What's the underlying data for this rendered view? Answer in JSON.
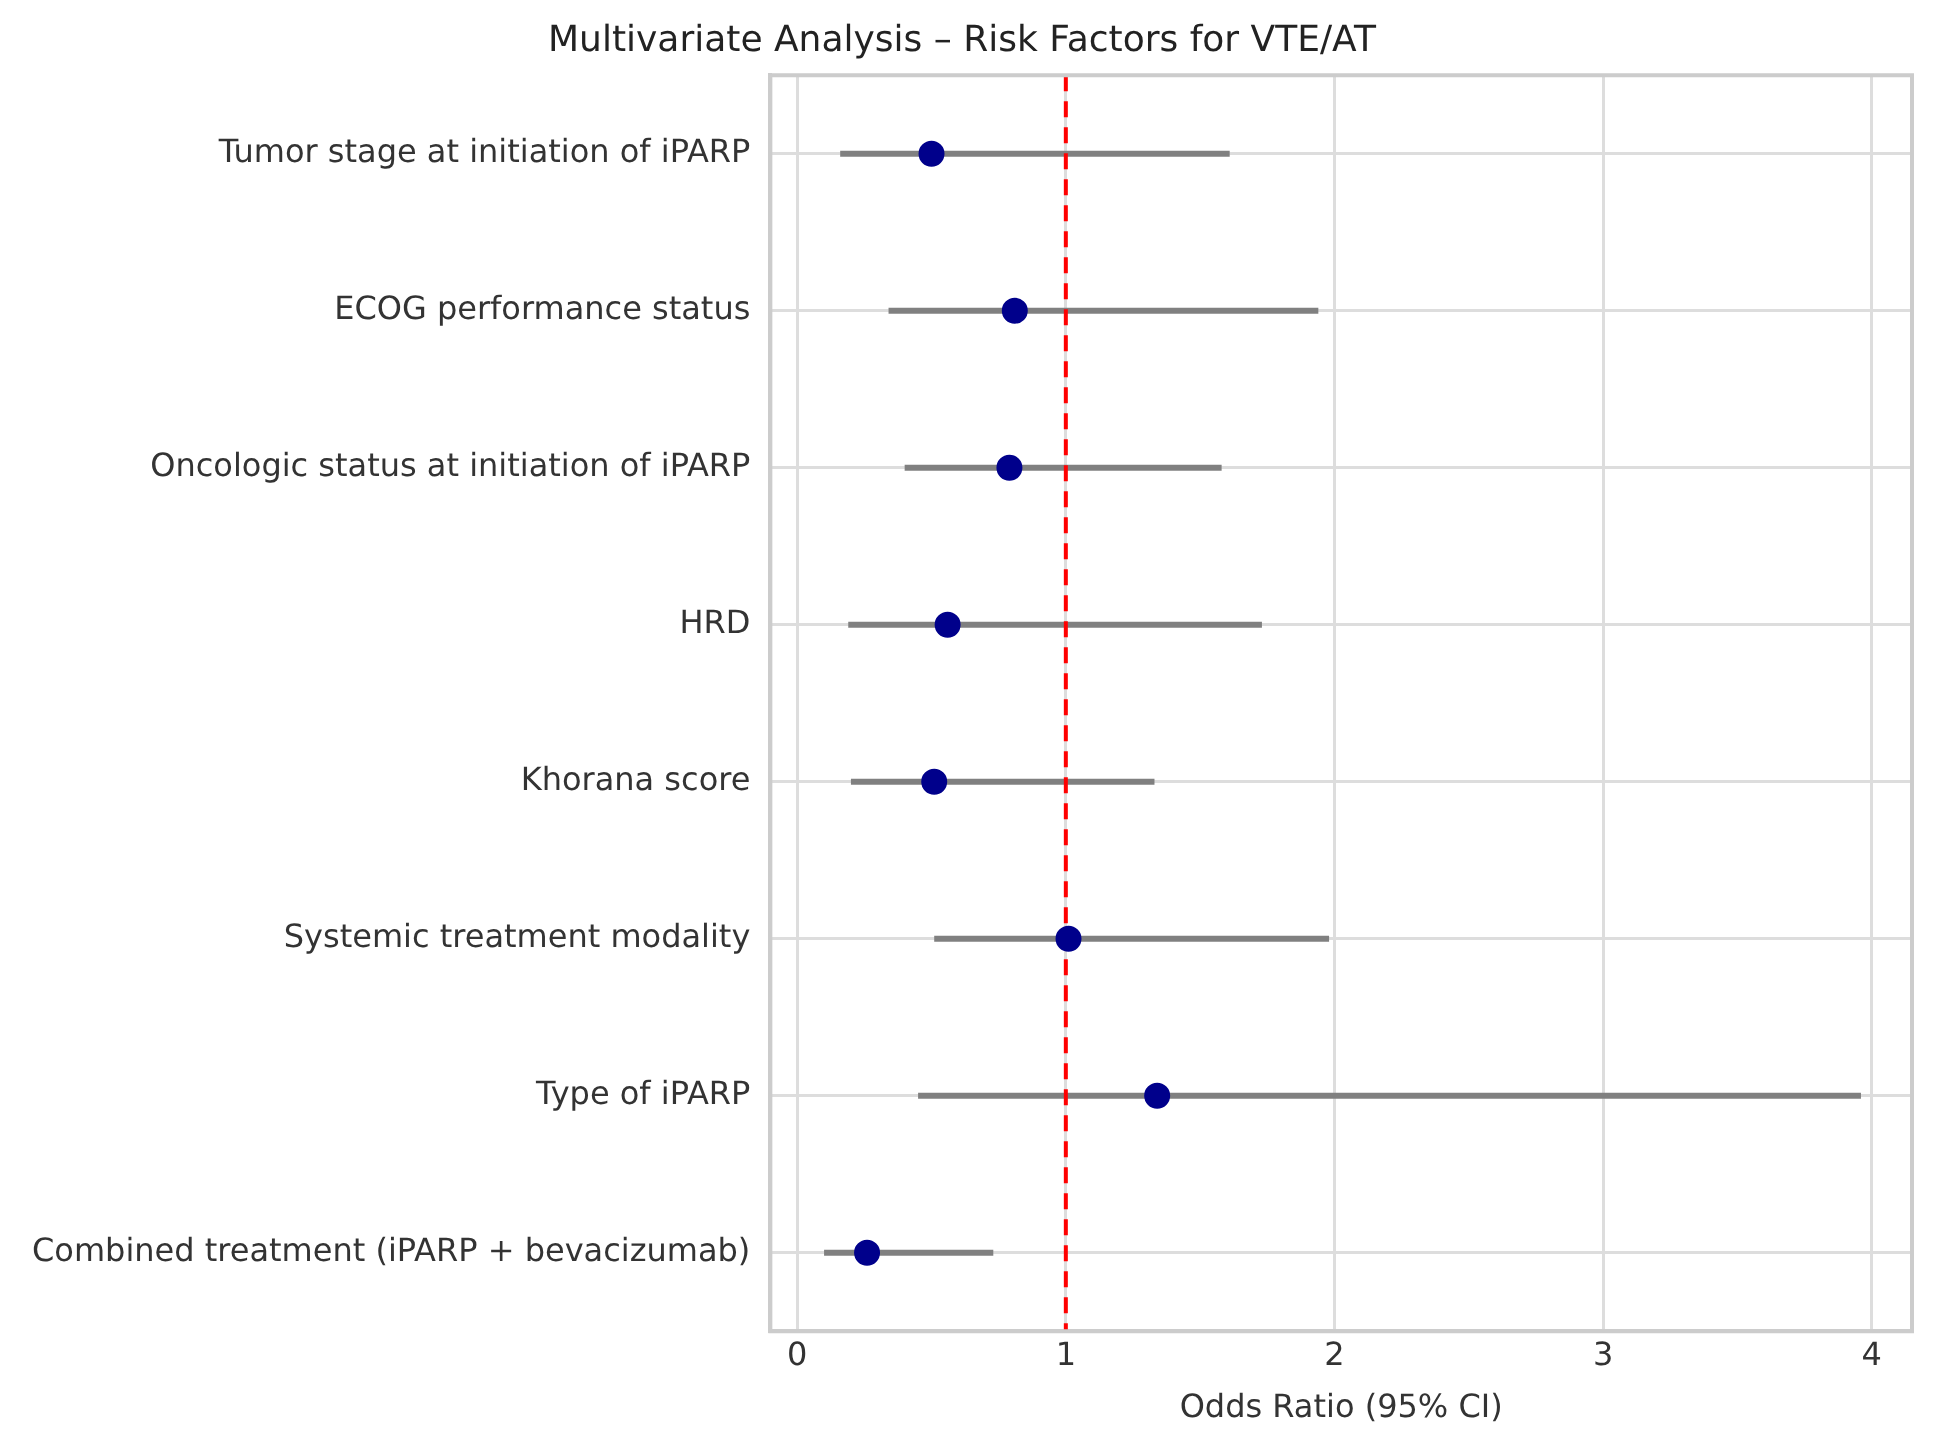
{
  "chart_data": {
    "type": "scatter",
    "orientation": "horizontal",
    "title": "Multivariate Analysis – Risk Factors for VTE/AT",
    "xlabel": "Odds Ratio (95% CI)",
    "categories": [
      "Tumor stage at initiation of iPARP",
      "ECOG performance status",
      "Oncologic status at initiation of iPARP",
      "HRD",
      "Khorana score",
      "Systemic treatment modality",
      "Type of iPARP",
      "Combined treatment (iPARP + bevacizumab)"
    ],
    "values": [
      0.5,
      0.81,
      0.79,
      0.56,
      0.51,
      1.01,
      1.34,
      0.26
    ],
    "errors": [
      [
        0.16,
        1.61
      ],
      [
        0.34,
        1.94
      ],
      [
        0.4,
        1.58
      ],
      [
        0.19,
        1.73
      ],
      [
        0.2,
        1.33
      ],
      [
        0.51,
        1.98
      ],
      [
        0.45,
        3.96
      ],
      [
        0.1,
        0.73
      ]
    ],
    "color": "#00008b",
    "xlim": [
      -0.1,
      4.15
    ],
    "xticks": [
      0,
      1,
      2,
      3,
      4
    ],
    "ref_lines": [
      {
        "axis": "x",
        "value": 1,
        "color": "#ff0000",
        "line_style": "dashed"
      }
    ],
    "grid": true,
    "legend": false,
    "marker": "circle"
  }
}
